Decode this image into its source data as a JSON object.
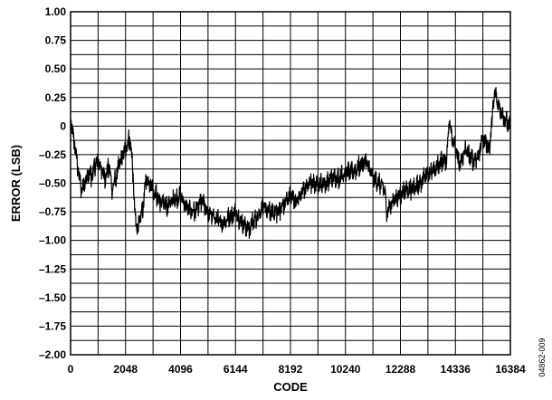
{
  "chart_data": {
    "type": "line",
    "title": "",
    "xlabel": "CODE",
    "ylabel": "ERROR (LSB)",
    "xlim": [
      0,
      16384
    ],
    "ylim": [
      -2.0,
      1.0
    ],
    "x_ticks": [
      0,
      2048,
      4096,
      6144,
      8192,
      10240,
      12288,
      14336,
      16384
    ],
    "x_tick_labels": [
      "0",
      "2048",
      "4096",
      "6144",
      "8192",
      "10240",
      "12288",
      "14336",
      "16384"
    ],
    "y_ticks": [
      1.0,
      0.75,
      0.5,
      0.25,
      0,
      -0.25,
      -0.5,
      -0.75,
      -1.0,
      -1.25,
      -1.5,
      -1.75,
      -2.0
    ],
    "y_tick_labels": [
      "1.00",
      "0.75",
      "0.50",
      "0.25",
      "0",
      "–0.25",
      "–0.50",
      "–0.75",
      "–1.00",
      "–1.25",
      "–1.50",
      "–1.75",
      "–2.00"
    ],
    "grid": true,
    "series": [
      {
        "color": "#000000",
        "x": [
          0,
          150,
          256,
          400,
          512,
          700,
          768,
          900,
          1024,
          1200,
          1280,
          1450,
          1536,
          1700,
          1792,
          1950,
          2048,
          2200,
          2300,
          2400,
          2500,
          2560,
          2700,
          2816,
          3000,
          3072,
          3300,
          3584,
          3800,
          4096,
          4300,
          4608,
          4900,
          5120,
          5400,
          5632,
          5900,
          6144,
          6400,
          6656,
          6900,
          7168,
          7400,
          7680,
          7900,
          8192,
          8400,
          8704,
          8900,
          9216,
          9500,
          9728,
          10000,
          10240,
          10500,
          10752,
          11000,
          11264,
          11500,
          11700,
          11776,
          12000,
          12288,
          12500,
          12800,
          13000,
          13312,
          13500,
          13824,
          14000,
          14100,
          14336,
          14500,
          14700,
          14848,
          15000,
          15200,
          15300,
          15360,
          15500,
          15600,
          15800,
          16000,
          16200,
          16384
        ],
        "y": [
          0.05,
          -0.15,
          -0.35,
          -0.55,
          -0.5,
          -0.4,
          -0.45,
          -0.35,
          -0.3,
          -0.4,
          -0.45,
          -0.35,
          -0.55,
          -0.45,
          -0.35,
          -0.25,
          -0.2,
          -0.1,
          -0.3,
          -0.8,
          -0.9,
          -0.85,
          -0.7,
          -0.45,
          -0.5,
          -0.55,
          -0.65,
          -0.7,
          -0.65,
          -0.6,
          -0.7,
          -0.75,
          -0.65,
          -0.75,
          -0.8,
          -0.85,
          -0.8,
          -0.75,
          -0.85,
          -0.9,
          -0.8,
          -0.7,
          -0.75,
          -0.75,
          -0.7,
          -0.6,
          -0.65,
          -0.55,
          -0.5,
          -0.5,
          -0.5,
          -0.45,
          -0.45,
          -0.4,
          -0.4,
          -0.35,
          -0.3,
          -0.45,
          -0.5,
          -0.55,
          -0.75,
          -0.65,
          -0.6,
          -0.55,
          -0.55,
          -0.5,
          -0.4,
          -0.4,
          -0.3,
          -0.3,
          0.05,
          -0.2,
          -0.35,
          -0.2,
          -0.25,
          -0.3,
          -0.25,
          -0.15,
          -0.1,
          -0.15,
          -0.2,
          0.3,
          0.15,
          0.05,
          0.0
        ]
      }
    ]
  },
  "figure_id": "04862-009"
}
